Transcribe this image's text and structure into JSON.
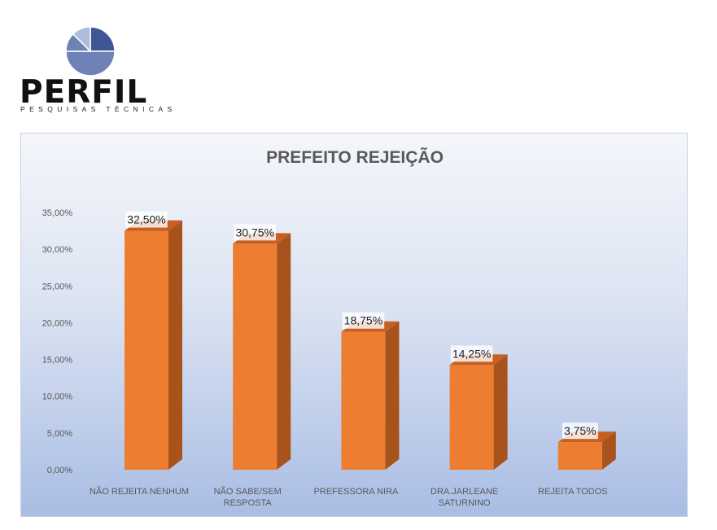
{
  "logo": {
    "name": "PERFIL",
    "tagline": "PESQUISAS TÉCNICAS"
  },
  "colors": {
    "bar_front": "#ED7D31",
    "bar_side": "#A8531B",
    "bar_top": "#C65F21",
    "logo_dark": "#3F5895",
    "logo_mid": "#6E82B8",
    "logo_light": "#AFBBDA"
  },
  "chart_data": {
    "type": "bar",
    "title": "PREFEITO REJEIÇÃO",
    "xlabel": "",
    "ylabel": "",
    "ylim": [
      0,
      35
    ],
    "yticks": [
      "0,00%",
      "5,00%",
      "10,00%",
      "15,00%",
      "20,00%",
      "25,00%",
      "30,00%",
      "35,00%"
    ],
    "categories": [
      [
        "NÃO REJEITA NENHUM"
      ],
      [
        "NÃO SABE/SEM",
        "RESPOSTA"
      ],
      [
        "PREFESSORA NIRA"
      ],
      [
        "DRA.JARLEANE",
        "SATURNINO"
      ],
      [
        "REJEITA TODOS"
      ]
    ],
    "values": [
      32.5,
      30.75,
      18.75,
      14.25,
      3.75
    ],
    "data_labels": [
      "32,50%",
      "30,75%",
      "18,75%",
      "14,25%",
      "3,75%"
    ],
    "grid": false,
    "legend": "none",
    "style": "3d-column"
  }
}
